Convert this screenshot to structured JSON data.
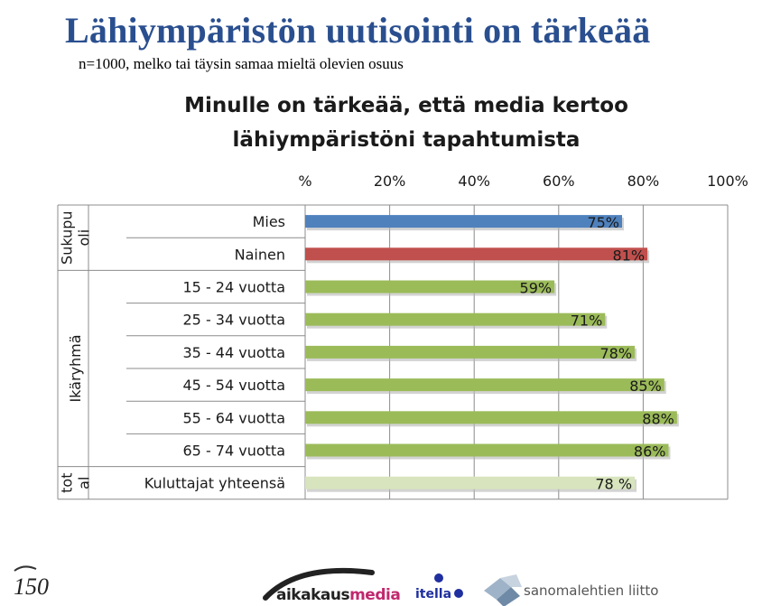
{
  "slide": {
    "title": "Lähiympäristön uutisointi on tärkeää",
    "subtitle": "n=1000, melko tai täysin samaa mieltä olevien osuus"
  },
  "chart_data": {
    "type": "bar",
    "orientation": "horizontal",
    "title": "Minulle on tärkeää, että media kertoo lähiympäristöni tapahtumista",
    "title_lines": [
      "Minulle on tärkeää, että media kertoo",
      "lähiympäristöni tapahtumista"
    ],
    "xlim": [
      0,
      100
    ],
    "x_ticks": [
      "%",
      "20%",
      "40%",
      "60%",
      "80%",
      "100%"
    ],
    "grid": true,
    "groups": [
      {
        "label_lines": [
          "Sukupu",
          "oli"
        ],
        "categories": [
          "Mies",
          "Nainen"
        ]
      },
      {
        "label_lines": [
          "Ikäryhmä"
        ],
        "categories": [
          "15 - 24 vuotta",
          "25 - 34 vuotta",
          "35 - 44 vuotta",
          "45 - 54 vuotta",
          "55 - 64 vuotta",
          "65 - 74 vuotta"
        ]
      },
      {
        "label_lines": [
          "tot",
          "al"
        ],
        "categories": [
          "Kuluttajat yhteensä"
        ]
      }
    ],
    "categories": [
      "Mies",
      "Nainen",
      "15 - 24 vuotta",
      "25 - 34 vuotta",
      "35 - 44 vuotta",
      "45 - 54 vuotta",
      "55 - 64 vuotta",
      "65 - 74 vuotta",
      "Kuluttajat yhteensä"
    ],
    "values": [
      75,
      81,
      59,
      71,
      78,
      85,
      88,
      86,
      78
    ],
    "value_labels": [
      "75%",
      "81%",
      "59%",
      "71%",
      "78%",
      "85%",
      "88%",
      "86%",
      "78 %"
    ],
    "colors": [
      "#4f81bd",
      "#c0504d",
      "#9bbb59",
      "#9bbb59",
      "#9bbb59",
      "#9bbb59",
      "#9bbb59",
      "#9bbb59",
      "#d7e4bd"
    ]
  },
  "footer": {
    "logos": [
      {
        "name": "aikakausmedia",
        "text_dark": "aikakaus",
        "text_accent": "media",
        "accent_color": "#c0286e"
      },
      {
        "name": "itella",
        "text": "itella",
        "color": "#1f2f9f"
      },
      {
        "name": "sanomalehtien-liitto",
        "text": "sanomalehtien liitto"
      }
    ],
    "anniversary_mark": {
      "name": "anniversary-logo-icon",
      "text": "150"
    }
  }
}
